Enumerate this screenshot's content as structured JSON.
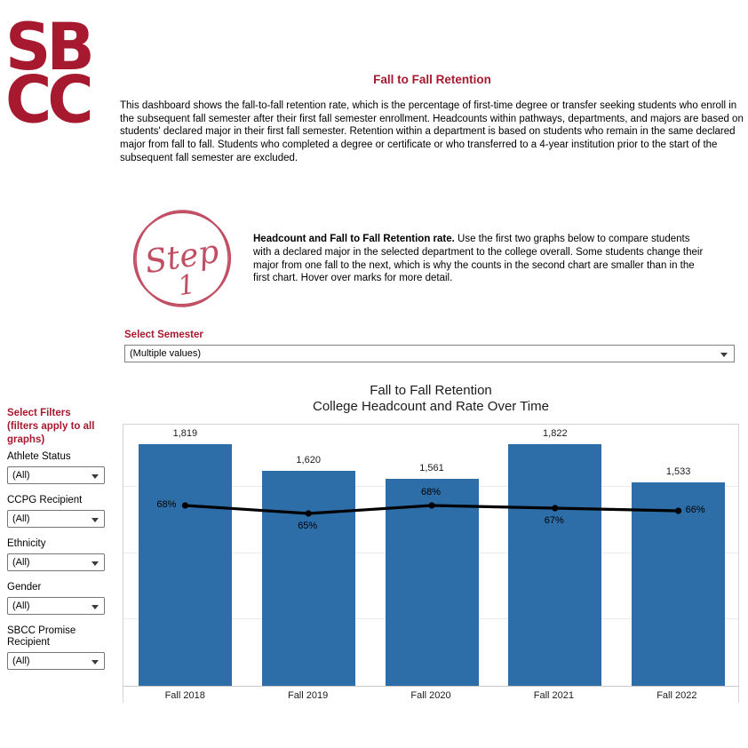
{
  "logo": {
    "line1": "SB",
    "line2": "CC"
  },
  "header": {
    "title": "Fall to Fall Retention",
    "description": "This dashboard shows the fall-to-fall retention rate, which is the percentage of first-time degree or transfer seeking students who enroll in the subsequent fall semester after their first fall semester enrollment. Headcounts within pathways, departments, and majors are based on students' declared major in their first fall semester. Retention within a department is based on students who remain in the same declared major from fall to fall. Students who completed a degree or certificate or who transferred to a 4-year institution prior to the start of the subsequent fall semester are excluded."
  },
  "step": {
    "badge_word": "Step",
    "badge_number": "1",
    "lead": "Headcount and Fall to Fall Retention rate.",
    "text": " Use the first two graphs below to compare students with a declared major in the selected department to the college overall. Some students change their major from one fall to the next, which is why the counts in the second chart are smaller than in the first chart. Hover over marks for more detail."
  },
  "semester_filter": {
    "label": "Select Semester",
    "value": "(Multiple values)"
  },
  "sidebar": {
    "heading_line1": "Select Filters",
    "heading_line2": "(filters apply to all graphs)",
    "filters": [
      {
        "label": "Athlete Status",
        "value": "(All)"
      },
      {
        "label": "CCPG Recipient",
        "value": "(All)"
      },
      {
        "label": "Ethnicity",
        "value": "(All)"
      },
      {
        "label": "Gender",
        "value": "(All)"
      },
      {
        "label": "SBCC Promise Recipient",
        "value": "(All)"
      }
    ]
  },
  "chart_data": {
    "type": "bar",
    "title_line1": "Fall to Fall Retention",
    "title_line2": "College Headcount and Rate Over Time",
    "categories": [
      "Fall 2018",
      "Fall 2019",
      "Fall 2020",
      "Fall 2021",
      "Fall 2022"
    ],
    "series": [
      {
        "name": "College Headcount",
        "type": "bar",
        "values": [
          1819,
          1620,
          1561,
          1822,
          1533
        ],
        "labels": [
          "1,819",
          "1,620",
          "1,561",
          "1,822",
          "1,533"
        ],
        "color": "#2d6da8"
      },
      {
        "name": "Fall to Fall Retention Rate",
        "type": "line",
        "values": [
          68,
          65,
          68,
          67,
          66
        ],
        "labels": [
          "68%",
          "65%",
          "68%",
          "67%",
          "66%"
        ],
        "label_positions": [
          "left",
          "below",
          "above",
          "below",
          "right"
        ],
        "color": "#000000"
      }
    ],
    "ylim": [
      0,
      1975
    ],
    "rate_ylim": [
      0,
      100
    ],
    "gridline_values": [
      500,
      1000,
      1500
    ],
    "grid": true,
    "legend": "none"
  },
  "colors": {
    "brand_red": "#a6192e",
    "step_pink": "#c14f63",
    "bar_blue": "#2d6da8",
    "line_black": "#000000"
  }
}
